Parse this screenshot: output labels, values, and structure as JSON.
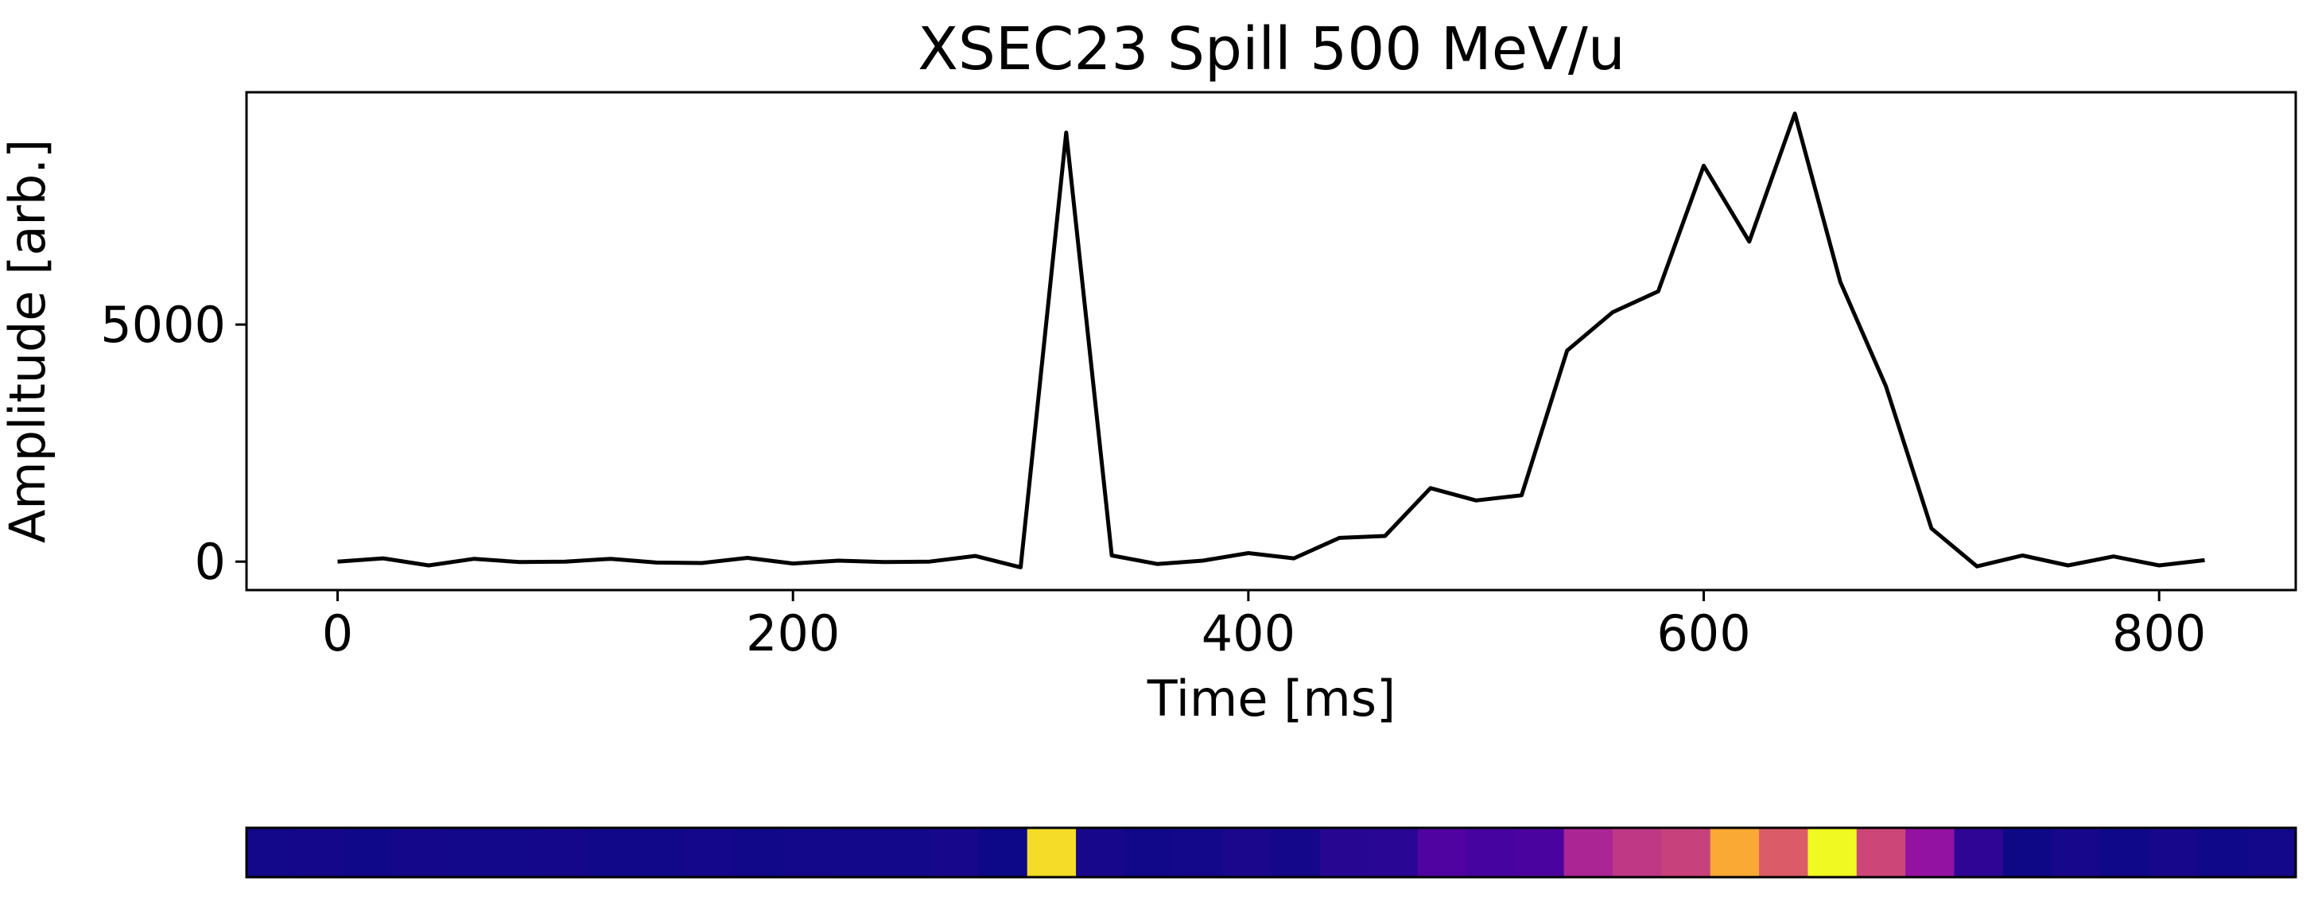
{
  "chart_data": [
    {
      "type": "line",
      "title": "XSEC23 Spill 500 MeV/u",
      "xlabel": "Time [ms]",
      "ylabel": "Amplitude [arb.]",
      "xlim": [
        -40,
        860
      ],
      "ylim": [
        -600,
        9900
      ],
      "xticks": [
        0,
        200,
        400,
        600,
        800
      ],
      "yticks": [
        0,
        5000
      ],
      "grid": false,
      "line_color": "#000000",
      "series": [
        {
          "x": [
            0,
            20,
            40,
            60,
            80,
            100,
            120,
            140,
            160,
            180,
            200,
            220,
            240,
            260,
            280,
            300,
            320,
            340,
            360,
            380,
            400,
            420,
            440,
            460,
            480,
            500,
            520,
            540,
            560,
            580,
            600,
            620,
            640,
            660,
            680,
            700,
            720,
            740,
            760,
            780,
            800,
            820
          ],
          "values": [
            0,
            70,
            -80,
            60,
            -10,
            0,
            60,
            -20,
            -30,
            80,
            -40,
            20,
            -10,
            0,
            120,
            -120,
            9050,
            130,
            -50,
            20,
            180,
            70,
            500,
            540,
            1550,
            1290,
            1400,
            4450,
            5260,
            5700,
            8350,
            6750,
            9450,
            5900,
            3700,
            700,
            -100,
            130,
            -80,
            110,
            -80,
            30
          ]
        }
      ]
    },
    {
      "type": "heatmap",
      "colormap": "plasma",
      "cells": 42,
      "vmin": -120,
      "vmax": 9450
    }
  ]
}
